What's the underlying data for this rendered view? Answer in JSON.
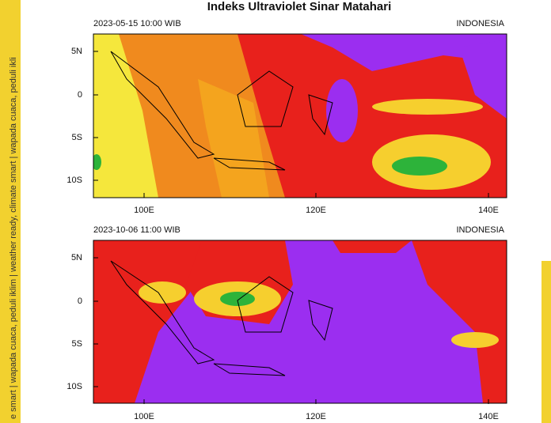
{
  "title": "Indeks Ultraviolet Sinar Matahari",
  "side_text": "e smart  |  wapada cuaca, peduli iklim  |  weather ready, climate smart  |  wapada cuaca, peduli ikli",
  "panels": [
    {
      "datetime": "2023-05-15  10:00 WIB",
      "region": "INDONESIA"
    },
    {
      "datetime": "2023-10-06  11:00 WIB",
      "region": "INDONESIA"
    }
  ],
  "lat_labels": [
    "5N",
    "0",
    "5S",
    "10S"
  ],
  "lon_labels": [
    "100E",
    "120E",
    "140E"
  ]
}
